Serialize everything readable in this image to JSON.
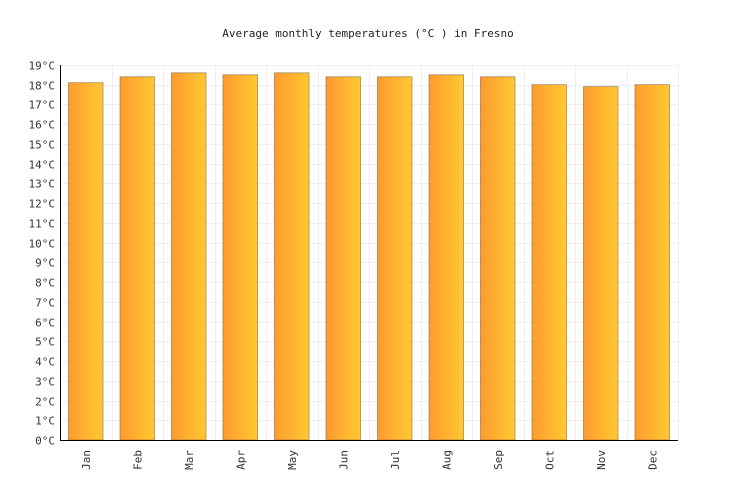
{
  "chart_data": {
    "type": "bar",
    "title": "Average monthly temperatures (°C ) in Fresno",
    "xlabel": "",
    "ylabel": "",
    "categories": [
      "Jan",
      "Feb",
      "Mar",
      "Apr",
      "May",
      "Jun",
      "Jul",
      "Aug",
      "Sep",
      "Oct",
      "Nov",
      "Dec"
    ],
    "values": [
      18.1,
      18.4,
      18.6,
      18.5,
      18.6,
      18.4,
      18.4,
      18.5,
      18.4,
      18.0,
      17.9,
      18.0
    ],
    "ylim": [
      0,
      19
    ],
    "ytick_step": 1,
    "ytick_suffix": "°C",
    "grid": true,
    "legend": "none",
    "colors": {
      "bar_left": "#ff9a2e",
      "bar_right": "#ffc933",
      "bar_stroke": "#8a6a3a",
      "grid": "#eeeeee",
      "axis": "#000000"
    }
  }
}
